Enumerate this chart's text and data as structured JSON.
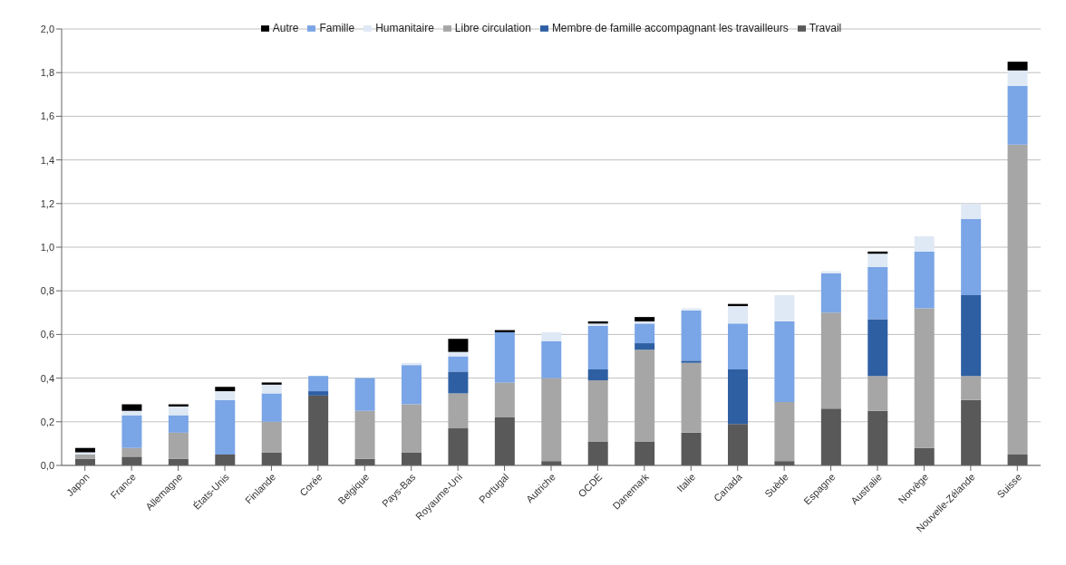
{
  "chart_data": {
    "type": "bar",
    "stacked": true,
    "categories": [
      "Japon",
      "France",
      "Allemagne",
      "États-Unis",
      "Finlande",
      "Corée",
      "Belgique",
      "Pays-Bas",
      "Royaume-Uni",
      "Portugal",
      "Autriche",
      "OCDE",
      "Danemark",
      "Italie",
      "Canada",
      "Suède",
      "Espagne",
      "Australie",
      "Norvège",
      "Nouvelle-Zélande",
      "Suisse"
    ],
    "series": [
      {
        "name": "Travail",
        "color": "#595959",
        "values": [
          0.03,
          0.04,
          0.03,
          0.05,
          0.06,
          0.32,
          0.03,
          0.06,
          0.17,
          0.22,
          0.02,
          0.11,
          0.11,
          0.15,
          0.19,
          0.02,
          0.26,
          0.25,
          0.08,
          0.3,
          0.05
        ]
      },
      {
        "name": "Libre circulation",
        "color": "#a6a6a6",
        "values": [
          0.02,
          0.04,
          0.12,
          0,
          0.14,
          0,
          0.22,
          0.22,
          0.16,
          0.16,
          0.38,
          0.28,
          0.42,
          0.32,
          0,
          0.27,
          0.44,
          0.16,
          0.64,
          0.11,
          1.42
        ]
      },
      {
        "name": "Membre de famille accompagnant les travailleurs",
        "color": "#2e5fa3",
        "values": [
          0,
          0,
          0,
          0,
          0,
          0.02,
          0,
          0,
          0.1,
          0,
          0,
          0.05,
          0.03,
          0.01,
          0.25,
          0,
          0,
          0.26,
          0,
          0.37,
          0
        ]
      },
      {
        "name": "Famille",
        "color": "#7aa5e6",
        "values": [
          0,
          0.15,
          0.08,
          0.25,
          0.13,
          0.07,
          0.15,
          0.18,
          0.07,
          0.23,
          0.17,
          0.2,
          0.09,
          0.23,
          0.21,
          0.37,
          0.18,
          0.24,
          0.26,
          0.35,
          0.27
        ]
      },
      {
        "name": "Humanitaire",
        "color": "#dfe9f5",
        "values": [
          0.01,
          0.02,
          0.04,
          0.04,
          0.04,
          0,
          0,
          0.01,
          0.02,
          0,
          0.04,
          0.01,
          0.01,
          0.01,
          0.08,
          0.12,
          0.01,
          0.06,
          0.07,
          0.07,
          0.07
        ]
      },
      {
        "name": "Autre",
        "color": "#000000",
        "values": [
          0.02,
          0.03,
          0.01,
          0.02,
          0.01,
          0,
          0,
          0,
          0.06,
          0.01,
          0,
          0.01,
          0.02,
          0,
          0.01,
          0,
          0,
          0.01,
          0,
          0,
          0.04
        ]
      }
    ],
    "ylim": [
      0,
      2
    ],
    "yticks": [
      {
        "value": 0,
        "label": "0,0"
      },
      {
        "value": 0.2,
        "label": "0,2"
      },
      {
        "value": 0.4,
        "label": "0,4"
      },
      {
        "value": 0.6,
        "label": "0,6"
      },
      {
        "value": 0.8,
        "label": "0,8"
      },
      {
        "value": 1,
        "label": "1,0"
      },
      {
        "value": 1.2,
        "label": "1,2"
      },
      {
        "value": 1.4,
        "label": "1,4"
      },
      {
        "value": 1.6,
        "label": "1,6"
      },
      {
        "value": 1.8,
        "label": "1,8"
      },
      {
        "value": 2,
        "label": "2,0"
      }
    ],
    "grid": "y",
    "legend": "top"
  }
}
